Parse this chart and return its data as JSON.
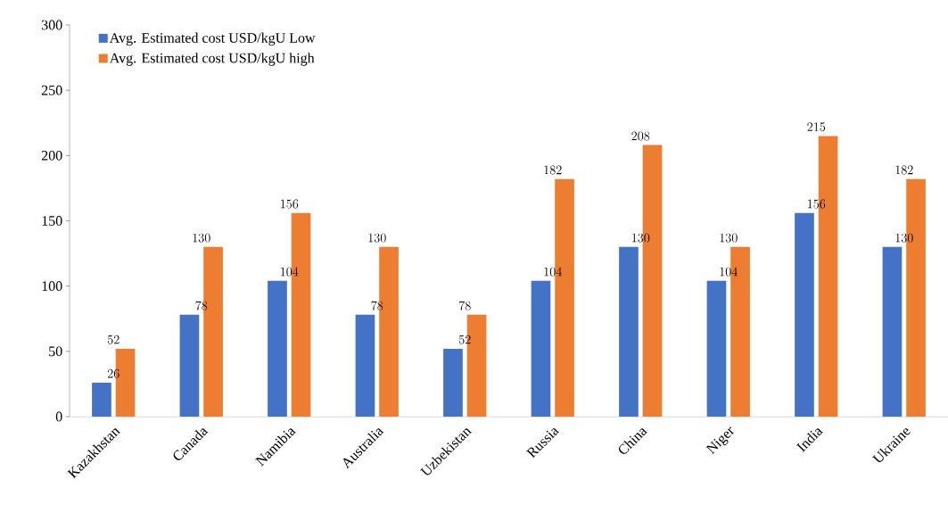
{
  "chart_data": {
    "type": "bar",
    "categories": [
      "Kazakhstan",
      "Canada",
      "Namibia",
      "Australia",
      "Uzbekistan",
      "Russia",
      "China",
      "Niger",
      "India",
      "Ukraine"
    ],
    "series": [
      {
        "name": "Avg. Estimated cost USD/kgU Low",
        "color": "#4472c4",
        "values": [
          26,
          78,
          104,
          78,
          52,
          104,
          130,
          104,
          156,
          130
        ]
      },
      {
        "name": "Avg. Estimated cost USD/kgU high",
        "color": "#ed7d31",
        "values": [
          52,
          130,
          156,
          130,
          78,
          182,
          208,
          130,
          215,
          182
        ]
      }
    ],
    "ylim": [
      0,
      300
    ],
    "yticks": [
      0,
      50,
      100,
      150,
      200,
      250,
      300
    ],
    "data_labels": true,
    "legend": "top left"
  }
}
